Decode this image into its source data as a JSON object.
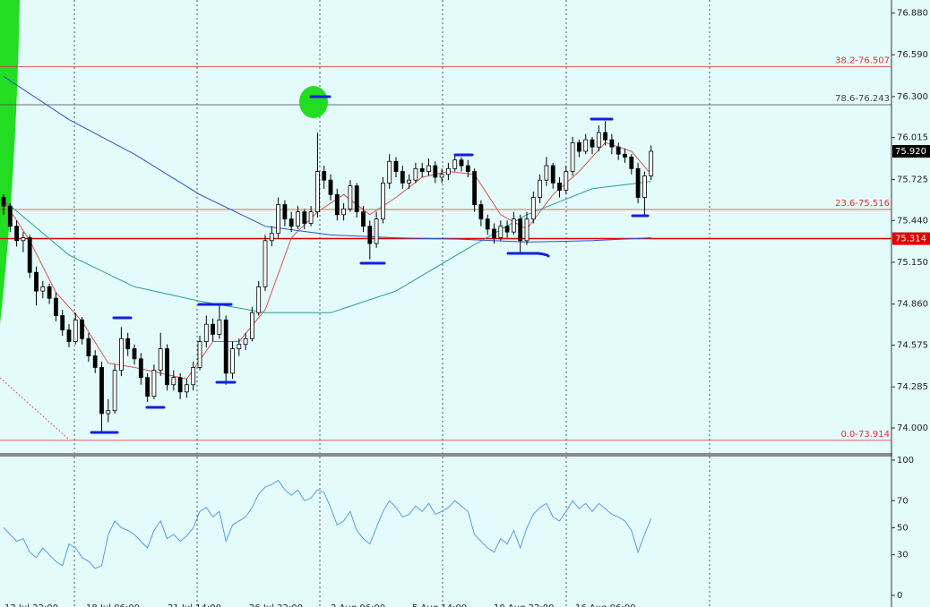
{
  "chart_data": [
    {
      "type": "candlestick",
      "ylim": [
        73.82,
        76.97
      ],
      "yticks": [
        {
          "value": 76.88,
          "label": "76.880"
        },
        {
          "value": 76.59,
          "label": "76.590"
        },
        {
          "value": 76.3,
          "label": "76.300"
        },
        76.015,
        75.725,
        {
          "value": 75.44,
          "label": "75.440"
        },
        {
          "value": 75.15,
          "label": "75.150"
        },
        {
          "value": 74.86,
          "label": "74.860"
        },
        74.575,
        74.285,
        {
          "value": 74.0,
          "label": "74.000"
        }
      ],
      "time_labels": [
        "12 Jul 22:00",
        "18 Jul 06:00",
        "21 Jul 14:00",
        "26 Jul 22:00",
        "2 Aug 06:00",
        "5 Aug 14:00",
        "10 Aug 22:00",
        "16 Aug 06:00"
      ],
      "ohlc": [
        [
          75.6,
          75.62,
          75.48,
          75.54
        ],
        [
          75.54,
          75.56,
          75.36,
          75.4
        ],
        [
          75.4,
          75.44,
          75.26,
          75.3
        ],
        [
          75.3,
          75.36,
          75.22,
          75.32
        ],
        [
          75.32,
          75.34,
          75.04,
          75.08
        ],
        [
          75.08,
          75.12,
          74.85,
          74.95
        ],
        [
          74.95,
          75.02,
          74.9,
          74.98
        ],
        [
          74.98,
          75.0,
          74.86,
          74.9
        ],
        [
          74.9,
          74.94,
          74.74,
          74.78
        ],
        [
          74.78,
          74.82,
          74.64,
          74.68
        ],
        [
          74.68,
          74.72,
          74.56,
          74.6
        ],
        [
          74.6,
          74.8,
          74.58,
          74.75
        ],
        [
          74.75,
          74.77,
          74.58,
          74.62
        ],
        [
          74.62,
          74.66,
          74.46,
          74.5
        ],
        [
          74.5,
          74.54,
          74.38,
          74.42
        ],
        [
          74.42,
          74.46,
          73.97,
          74.1
        ],
        [
          74.1,
          74.2,
          74.04,
          74.12
        ],
        [
          74.12,
          74.44,
          74.1,
          74.4
        ],
        [
          74.4,
          74.7,
          74.36,
          74.62
        ],
        [
          74.62,
          74.66,
          74.5,
          74.55
        ],
        [
          74.55,
          74.58,
          74.44,
          74.48
        ],
        [
          74.48,
          74.52,
          74.3,
          74.35
        ],
        [
          74.35,
          74.38,
          74.18,
          74.22
        ],
        [
          74.22,
          74.44,
          74.2,
          74.4
        ],
        [
          74.4,
          74.66,
          74.36,
          74.55
        ],
        [
          74.55,
          74.58,
          74.26,
          74.3
        ],
        [
          74.3,
          74.4,
          74.26,
          74.35
        ],
        [
          74.35,
          74.38,
          74.2,
          74.25
        ],
        [
          74.25,
          74.34,
          74.21,
          74.3
        ],
        [
          74.3,
          74.46,
          74.26,
          74.42
        ],
        [
          74.42,
          74.64,
          74.4,
          74.6
        ],
        [
          74.6,
          74.78,
          74.56,
          74.72
        ],
        [
          74.72,
          74.76,
          74.6,
          74.65
        ],
        [
          74.65,
          74.85,
          74.62,
          74.75
        ],
        [
          74.75,
          74.78,
          74.3,
          74.38
        ],
        [
          74.38,
          74.6,
          74.34,
          74.55
        ],
        [
          74.55,
          74.62,
          74.5,
          74.58
        ],
        [
          74.58,
          74.66,
          74.54,
          74.62
        ],
        [
          74.62,
          74.84,
          74.6,
          74.8
        ],
        [
          74.8,
          75.02,
          74.78,
          74.98
        ],
        [
          74.98,
          75.34,
          74.95,
          75.3
        ],
        [
          75.3,
          75.4,
          75.26,
          75.35
        ],
        [
          75.35,
          75.6,
          75.32,
          75.55
        ],
        [
          75.55,
          75.58,
          75.4,
          75.45
        ],
        [
          75.45,
          75.5,
          75.36,
          75.4
        ],
        [
          75.4,
          75.54,
          75.38,
          75.5
        ],
        [
          75.5,
          75.52,
          75.38,
          75.42
        ],
        [
          75.42,
          75.54,
          75.4,
          75.5
        ],
        [
          75.5,
          76.05,
          75.46,
          75.78
        ],
        [
          75.78,
          75.82,
          75.66,
          75.72
        ],
        [
          75.72,
          75.76,
          75.58,
          75.62
        ],
        [
          75.62,
          75.66,
          75.44,
          75.48
        ],
        [
          75.48,
          75.56,
          75.44,
          75.52
        ],
        [
          75.52,
          75.72,
          75.5,
          75.68
        ],
        [
          75.68,
          75.7,
          75.46,
          75.5
        ],
        [
          75.5,
          75.54,
          75.36,
          75.4
        ],
        [
          75.4,
          75.44,
          75.17,
          75.28
        ],
        [
          75.28,
          75.5,
          75.25,
          75.45
        ],
        [
          75.45,
          75.74,
          75.42,
          75.7
        ],
        [
          75.7,
          75.9,
          75.66,
          75.85
        ],
        [
          75.85,
          75.88,
          75.74,
          75.78
        ],
        [
          75.78,
          75.82,
          75.66,
          75.7
        ],
        [
          75.7,
          75.76,
          75.66,
          75.72
        ],
        [
          75.72,
          75.84,
          75.7,
          75.8
        ],
        [
          75.8,
          75.84,
          75.74,
          75.78
        ],
        [
          75.78,
          75.87,
          75.75,
          75.82
        ],
        [
          75.82,
          75.85,
          75.7,
          75.74
        ],
        [
          75.74,
          75.8,
          75.7,
          75.76
        ],
        [
          75.76,
          75.84,
          75.72,
          75.8
        ],
        [
          75.8,
          75.9,
          75.78,
          75.86
        ],
        [
          75.86,
          75.88,
          75.78,
          75.82
        ],
        [
          75.82,
          75.86,
          75.74,
          75.78
        ],
        [
          75.78,
          75.8,
          75.5,
          75.55
        ],
        [
          75.55,
          75.58,
          75.4,
          75.45
        ],
        [
          75.45,
          75.48,
          75.34,
          75.38
        ],
        [
          75.38,
          75.42,
          75.28,
          75.32
        ],
        [
          75.32,
          75.44,
          75.3,
          75.4
        ],
        [
          75.4,
          75.44,
          75.32,
          75.36
        ],
        [
          75.36,
          75.5,
          75.34,
          75.45
        ],
        [
          75.45,
          75.48,
          75.22,
          75.3
        ],
        [
          75.3,
          75.5,
          75.27,
          75.45
        ],
        [
          75.45,
          75.64,
          75.42,
          75.6
        ],
        [
          75.6,
          75.76,
          75.56,
          75.72
        ],
        [
          75.72,
          75.88,
          75.68,
          75.82
        ],
        [
          75.82,
          75.84,
          75.66,
          75.7
        ],
        [
          75.7,
          75.74,
          75.6,
          75.65
        ],
        [
          75.65,
          75.82,
          75.62,
          75.78
        ],
        [
          75.78,
          76.02,
          75.75,
          75.98
        ],
        [
          75.98,
          76.0,
          75.88,
          75.92
        ],
        [
          75.92,
          76.04,
          75.9,
          76.0
        ],
        [
          76.0,
          76.02,
          75.9,
          75.95
        ],
        [
          75.95,
          76.1,
          75.92,
          76.05
        ],
        [
          76.05,
          76.13,
          75.96,
          76.0
        ],
        [
          76.0,
          76.04,
          75.9,
          75.95
        ],
        [
          75.95,
          75.98,
          75.86,
          75.9
        ],
        [
          75.9,
          75.94,
          75.84,
          75.88
        ],
        [
          75.88,
          75.9,
          75.76,
          75.8
        ],
        [
          75.8,
          75.84,
          75.56,
          75.6
        ],
        [
          75.6,
          75.78,
          75.48,
          75.75
        ],
        [
          75.75,
          75.96,
          75.72,
          75.92
        ]
      ],
      "series": [
        {
          "color": "#d9534f",
          "x": [
            0,
            4,
            8,
            12,
            16,
            20,
            24,
            28,
            32,
            36,
            40,
            44,
            48,
            52,
            56,
            60,
            64,
            68,
            72,
            76,
            80,
            84,
            88,
            92,
            96,
            99
          ],
          "values": [
            75.58,
            75.3,
            74.94,
            74.74,
            74.45,
            74.42,
            74.38,
            74.34,
            74.6,
            74.6,
            74.82,
            75.32,
            75.5,
            75.62,
            75.48,
            75.6,
            75.74,
            75.78,
            75.76,
            75.48,
            75.38,
            75.62,
            75.78,
            75.98,
            75.92,
            75.76
          ]
        },
        {
          "color": "#2a9d8f",
          "x": [
            0,
            10,
            20,
            30,
            40,
            50,
            60,
            70,
            80,
            90,
            99
          ],
          "values": [
            75.58,
            75.2,
            74.98,
            74.88,
            74.8,
            74.8,
            74.95,
            75.22,
            75.48,
            75.66,
            75.71
          ]
        },
        {
          "color": "#3050d0",
          "x": [
            0,
            10,
            20,
            30,
            40,
            50,
            60,
            70,
            80,
            90,
            99
          ],
          "values": [
            76.44,
            76.14,
            75.9,
            75.62,
            75.4,
            75.34,
            75.32,
            75.31,
            75.29,
            75.3,
            75.32
          ]
        }
      ],
      "levels": [
        {
          "value": 76.507,
          "label": "38.2-76.507",
          "color": "#e03030"
        },
        {
          "value": 76.243,
          "label": "78.6-76.243",
          "color": "#444444"
        },
        {
          "value": 75.516,
          "label": "23.6-75.516",
          "color": "#e03030"
        },
        {
          "value": 73.914,
          "label": "0.0-73.914",
          "color": "#e03030"
        }
      ],
      "price_markers": [
        {
          "value": 75.92,
          "label": "75.920",
          "color": "#000000"
        },
        {
          "value": 75.314,
          "label": "75.314",
          "color": "#e00000"
        }
      ]
    },
    {
      "type": "line",
      "ylim": [
        -8.6,
        102.6
      ],
      "yticks": [
        100,
        70,
        50,
        30,
        0
      ],
      "color": "#5b9be0",
      "values": [
        50,
        45,
        40,
        42,
        32,
        28,
        35,
        30,
        25,
        22,
        38,
        35,
        28,
        25,
        20,
        22,
        45,
        55,
        50,
        48,
        45,
        40,
        35,
        48,
        55,
        42,
        45,
        40,
        44,
        50,
        62,
        65,
        58,
        62,
        40,
        52,
        55,
        58,
        65,
        75,
        80,
        82,
        85,
        78,
        74,
        78,
        70,
        72,
        78,
        76,
        65,
        52,
        55,
        62,
        48,
        42,
        38,
        50,
        62,
        70,
        65,
        58,
        60,
        66,
        62,
        68,
        60,
        62,
        65,
        70,
        66,
        62,
        45,
        40,
        35,
        32,
        42,
        38,
        48,
        35,
        50,
        60,
        65,
        68,
        58,
        55,
        62,
        70,
        64,
        68,
        62,
        68,
        64,
        60,
        58,
        55,
        48,
        32,
        45,
        57
      ]
    }
  ]
}
